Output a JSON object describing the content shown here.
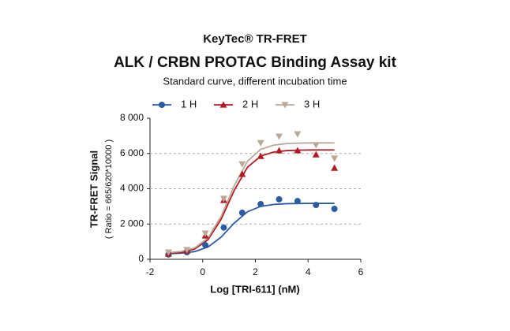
{
  "chart_data": {
    "type": "scatter",
    "title": "KeyTec® TR-FRET",
    "subtitle": "ALK / CRBN PROTAC Binding Assay kit",
    "caption": "Standard curve, different incubation time",
    "x_label": "Log [TRI-611] (nM)",
    "y_label": "TR-FRET Signal",
    "y_sublabel": "( Ratio = 665/620*10000 )",
    "xlim": [
      -2,
      6
    ],
    "xticks": [
      -2,
      0,
      2,
      4,
      6
    ],
    "ylim": [
      0,
      8000
    ],
    "yticks": [
      {
        "value": 0,
        "label": "0"
      },
      {
        "value": 2000,
        "label": "2 000"
      },
      {
        "value": 4000,
        "label": "4 000"
      },
      {
        "value": 6000,
        "label": "6 000"
      },
      {
        "value": 8000,
        "label": "8 000"
      }
    ],
    "grid": true,
    "legend": "top",
    "x": [
      -1.3,
      -0.6,
      0.1,
      0.8,
      1.5,
      2.2,
      2.9,
      3.6,
      4.3,
      5.0
    ],
    "fit_x": [
      -1.3,
      -0.8,
      -0.3,
      0.2,
      0.7,
      1.2,
      1.7,
      2.2,
      2.7,
      3.2,
      3.7,
      4.2,
      4.7,
      5.0
    ],
    "series": [
      {
        "name": "1 H",
        "color": "#2b5ba3",
        "marker": "circle",
        "values": [
          270,
          400,
          800,
          1800,
          2640,
          3130,
          3400,
          3300,
          3080,
          2860
        ],
        "fit": [
          314,
          345,
          438,
          693,
          1259,
          2059,
          2694,
          3001,
          3113,
          3153,
          3164,
          3170,
          3170,
          3170
        ]
      },
      {
        "name": "2 H",
        "color": "#b31b22",
        "marker": "triangle-up",
        "values": [
          310,
          490,
          1340,
          3350,
          4830,
          5850,
          6170,
          6170,
          5940,
          5180
        ],
        "fit": [
          330,
          392,
          583,
          1108,
          2271,
          3917,
          5221,
          5852,
          6082,
          6165,
          6188,
          6200,
          6200,
          6200
        ]
      },
      {
        "name": "3 H",
        "color": "#baa999",
        "marker": "triangle-down",
        "values": [
          400,
          540,
          1470,
          3440,
          5400,
          6600,
          6970,
          7100,
          6480,
          5720
        ],
        "fit": [
          381,
          448,
          650,
          1206,
          2438,
          4181,
          5563,
          6231,
          6475,
          6563,
          6588,
          6600,
          6600,
          6600
        ]
      }
    ]
  }
}
